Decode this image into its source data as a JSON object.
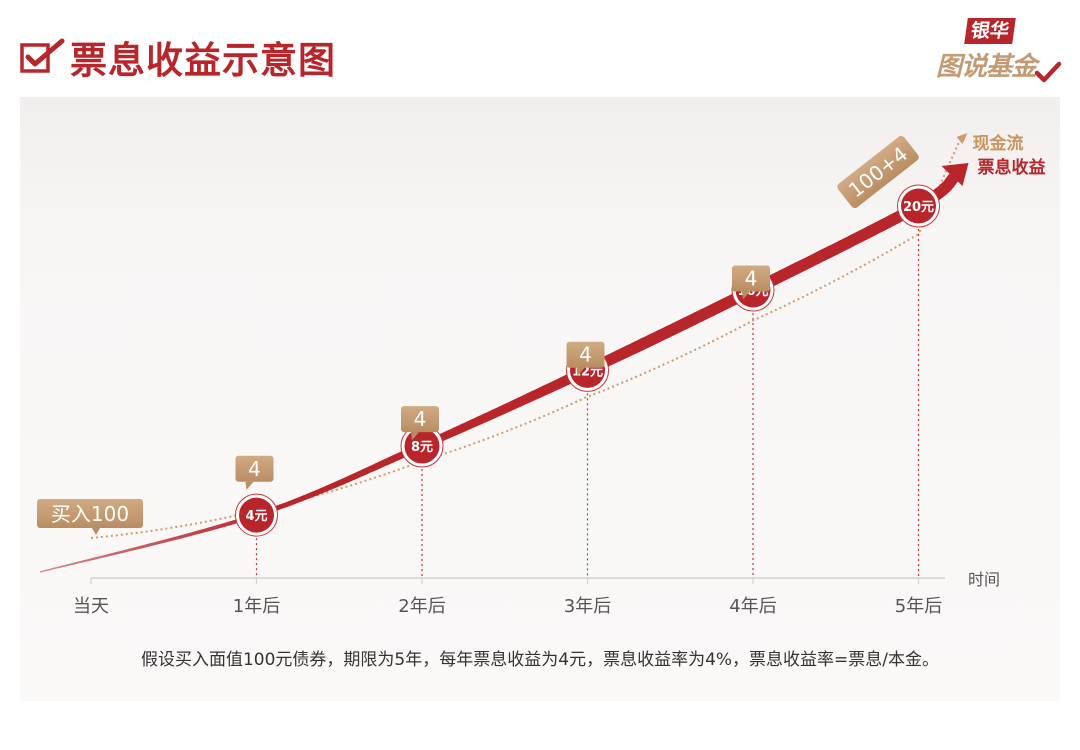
{
  "header": {
    "title": "票息收益示意图",
    "logo_brand": "银华",
    "logo_sub": "图说基金"
  },
  "colors": {
    "brand_red": "#b8262b",
    "tan": "#c39a72",
    "axis_text": "#555555"
  },
  "chart_data": {
    "type": "line",
    "title": "票息收益示意图",
    "xlabel": "时间",
    "ylabel": "",
    "categories": [
      "当天",
      "1年后",
      "2年后",
      "3年后",
      "4年后",
      "5年后"
    ],
    "series": [
      {
        "name": "票息收益",
        "values": [
          0,
          4,
          8,
          12,
          16,
          20
        ],
        "point_labels": [
          "",
          "4元",
          "8元",
          "12元",
          "16元",
          "20元"
        ]
      },
      {
        "name": "现金流",
        "values": [
          100,
          104,
          104,
          104,
          104,
          104
        ],
        "point_labels": [
          "买入100",
          "4",
          "4",
          "4",
          "4",
          "100+4"
        ]
      }
    ],
    "grid": false,
    "legend": "annotations at end of curves"
  },
  "footnote": "假设买入面值100元债券，期限为5年，每年票息收益为4元，票息收益率为4%，票息收益率=票息/本金。"
}
